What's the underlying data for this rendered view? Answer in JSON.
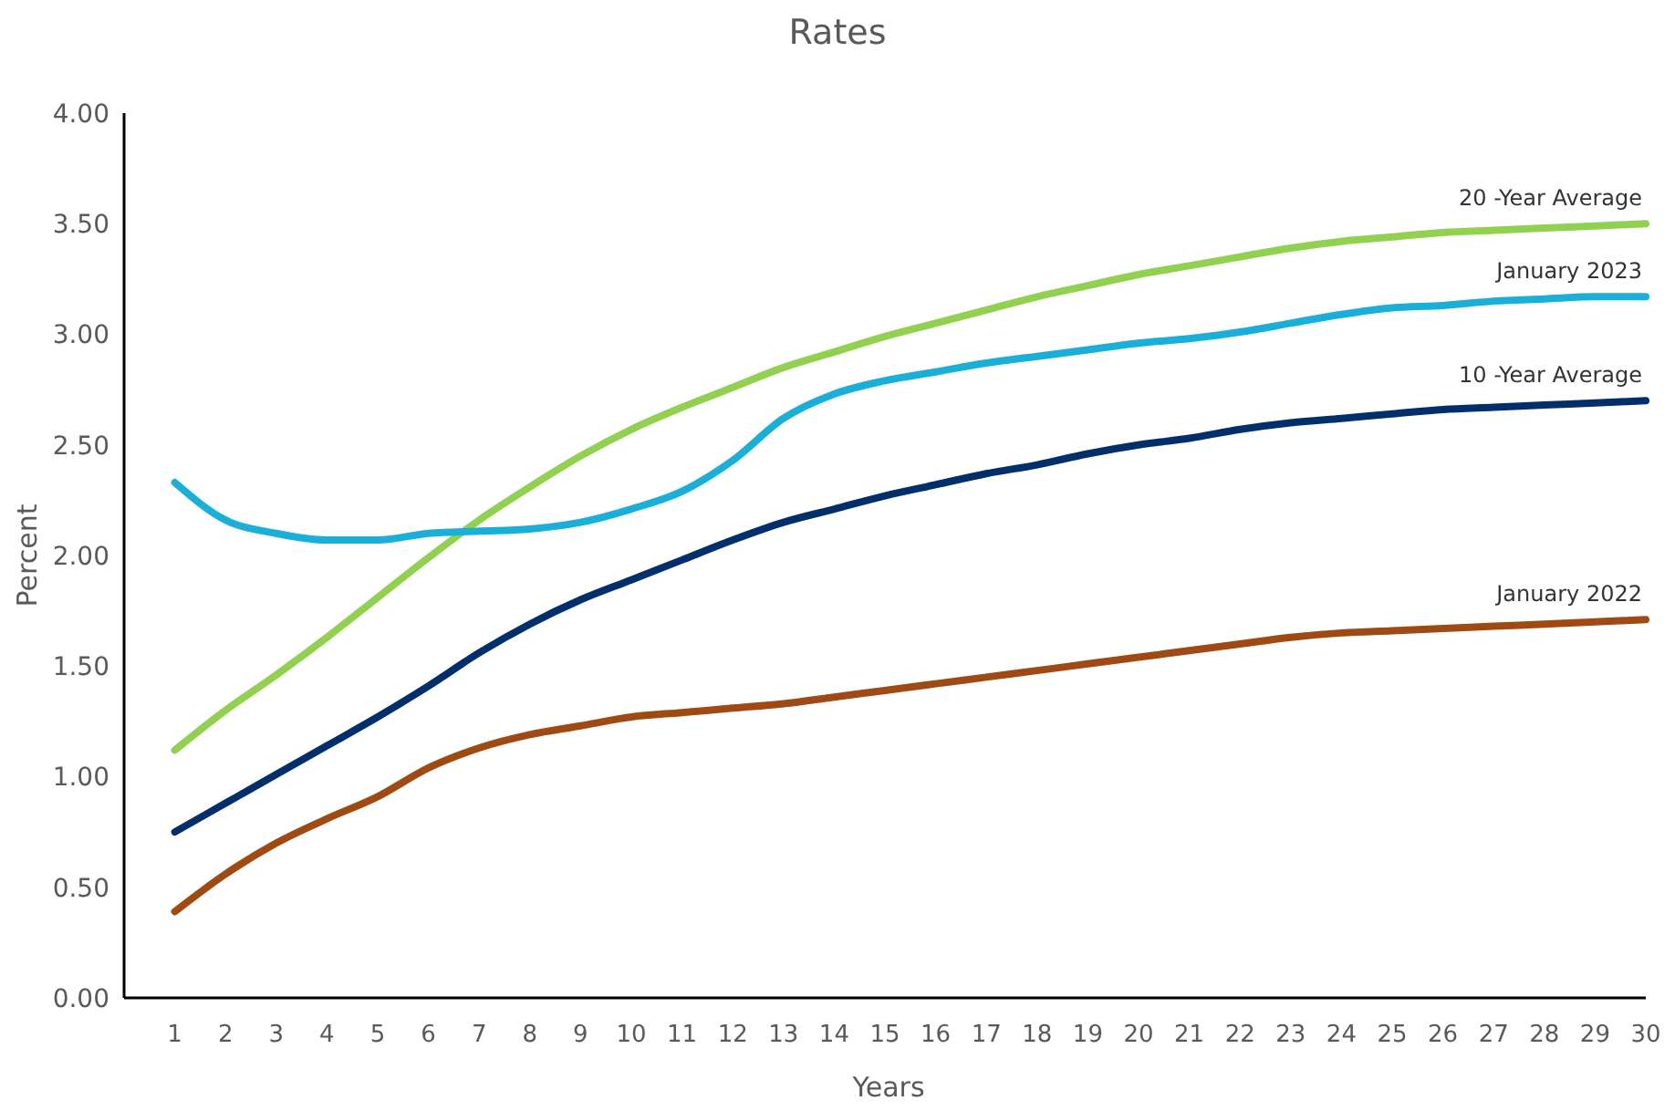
{
  "chart_data": {
    "type": "line",
    "title": "Rates",
    "xlabel": "Years",
    "ylabel": "Percent",
    "x": [
      1,
      2,
      3,
      4,
      5,
      6,
      7,
      8,
      9,
      10,
      11,
      12,
      13,
      14,
      15,
      16,
      17,
      18,
      19,
      20,
      21,
      22,
      23,
      24,
      25,
      26,
      27,
      28,
      29,
      30
    ],
    "xlim": [
      0,
      30
    ],
    "xticks": [
      1,
      2,
      3,
      4,
      5,
      6,
      7,
      8,
      9,
      10,
      11,
      12,
      13,
      14,
      15,
      16,
      17,
      18,
      19,
      20,
      21,
      22,
      23,
      24,
      25,
      26,
      27,
      28,
      29,
      30
    ],
    "ylim": [
      0,
      4
    ],
    "yticks": [
      {
        "value": 0,
        "label": "0.00"
      },
      {
        "value": 0.5,
        "label": "0.50"
      },
      {
        "value": 1,
        "label": "1.00"
      },
      {
        "value": 1.5,
        "label": "1.50"
      },
      {
        "value": 2,
        "label": "2.00"
      },
      {
        "value": 2.5,
        "label": "2.50"
      },
      {
        "value": 3,
        "label": "3.00"
      },
      {
        "value": 3.5,
        "label": "3.50"
      },
      {
        "value": 4,
        "label": "4.00"
      }
    ],
    "grid": false,
    "legend": false,
    "marker": "none",
    "line_style": "solid",
    "series": [
      {
        "name": "20 -Year Average",
        "color": "#92d050",
        "values": [
          1.12,
          1.3,
          1.46,
          1.63,
          1.81,
          1.99,
          2.16,
          2.31,
          2.45,
          2.57,
          2.67,
          2.76,
          2.85,
          2.92,
          2.99,
          3.05,
          3.11,
          3.17,
          3.22,
          3.27,
          3.31,
          3.35,
          3.39,
          3.42,
          3.44,
          3.46,
          3.47,
          3.48,
          3.49,
          3.5
        ]
      },
      {
        "name": "January 2023",
        "color": "#1aafd9",
        "values": [
          2.33,
          2.16,
          2.1,
          2.07,
          2.07,
          2.1,
          2.11,
          2.12,
          2.15,
          2.21,
          2.29,
          2.43,
          2.62,
          2.73,
          2.79,
          2.83,
          2.87,
          2.9,
          2.93,
          2.96,
          2.98,
          3.01,
          3.05,
          3.09,
          3.12,
          3.13,
          3.15,
          3.16,
          3.17,
          3.17
        ]
      },
      {
        "name": "10 -Year Average",
        "color": "#002f6c",
        "values": [
          0.75,
          0.88,
          1.01,
          1.14,
          1.27,
          1.41,
          1.56,
          1.69,
          1.8,
          1.89,
          1.98,
          2.07,
          2.15,
          2.21,
          2.27,
          2.32,
          2.37,
          2.41,
          2.46,
          2.5,
          2.53,
          2.57,
          2.6,
          2.62,
          2.64,
          2.66,
          2.67,
          2.68,
          2.69,
          2.7
        ]
      },
      {
        "name": "January 2022",
        "color": "#9e4a12",
        "values": [
          0.39,
          0.56,
          0.7,
          0.81,
          0.91,
          1.04,
          1.13,
          1.19,
          1.23,
          1.27,
          1.29,
          1.31,
          1.33,
          1.36,
          1.39,
          1.42,
          1.45,
          1.48,
          1.51,
          1.54,
          1.57,
          1.6,
          1.63,
          1.65,
          1.66,
          1.67,
          1.68,
          1.69,
          1.7,
          1.71
        ]
      }
    ]
  }
}
